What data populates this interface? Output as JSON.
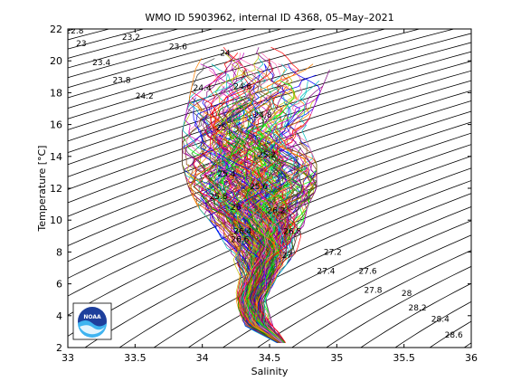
{
  "chart_data": {
    "type": "line",
    "title": "WMO ID 5903962, internal ID 4368, 05–May–2021",
    "xlabel": "Salinity",
    "ylabel": "Temperature [°C]",
    "xlim": [
      33,
      36
    ],
    "ylim": [
      2,
      22
    ],
    "xticks": [
      "33",
      "33.5",
      "34",
      "34.5",
      "35",
      "35.5",
      "36"
    ],
    "yticks": [
      "2",
      "4",
      "6",
      "8",
      "10",
      "12",
      "14",
      "16",
      "18",
      "20",
      "22"
    ],
    "grid": false,
    "isopycnals": {
      "values": [
        22.8,
        23,
        23.2,
        23.4,
        23.6,
        23.8,
        24,
        24.2,
        24.4,
        24.6,
        24.8,
        25,
        25.2,
        25.4,
        25.6,
        25.8,
        26,
        26.2,
        26.4,
        26.6,
        26.8,
        27,
        27.2,
        27.4,
        27.6,
        27.8,
        28,
        28.2,
        28.4,
        28.6
      ],
      "labels": [
        {
          "text": "22.8",
          "s": 33.05,
          "t": 21.9
        },
        {
          "text": "23",
          "s": 33.1,
          "t": 21.1
        },
        {
          "text": "23.2",
          "s": 33.47,
          "t": 21.5
        },
        {
          "text": "23.4",
          "s": 33.25,
          "t": 19.9
        },
        {
          "text": "23.6",
          "s": 33.82,
          "t": 20.9
        },
        {
          "text": "23.8",
          "s": 33.4,
          "t": 18.8
        },
        {
          "text": "24",
          "s": 34.17,
          "t": 20.5
        },
        {
          "text": "24.2",
          "s": 33.57,
          "t": 17.8
        },
        {
          "text": "24.4",
          "s": 34.0,
          "t": 18.3
        },
        {
          "text": "24.6",
          "s": 34.3,
          "t": 18.4
        },
        {
          "text": "24.8",
          "s": 34.45,
          "t": 16.6
        },
        {
          "text": "25",
          "s": 34.14,
          "t": 15.8
        },
        {
          "text": "25.2",
          "s": 34.48,
          "t": 14.1
        },
        {
          "text": "25.4",
          "s": 34.18,
          "t": 12.9
        },
        {
          "text": "25.6",
          "s": 34.42,
          "t": 12.1
        },
        {
          "text": "25.8",
          "s": 34.12,
          "t": 11.5
        },
        {
          "text": "26",
          "s": 34.25,
          "t": 10.8
        },
        {
          "text": "26.2",
          "s": 34.55,
          "t": 10.6
        },
        {
          "text": "26.4",
          "s": 34.3,
          "t": 9.3
        },
        {
          "text": "26.6",
          "s": 34.28,
          "t": 8.8
        },
        {
          "text": "26.8",
          "s": 34.67,
          "t": 9.3
        },
        {
          "text": "27",
          "s": 34.63,
          "t": 7.8
        },
        {
          "text": "27.2",
          "s": 34.97,
          "t": 8.0
        },
        {
          "text": "27.4",
          "s": 34.92,
          "t": 6.8
        },
        {
          "text": "27.6",
          "s": 35.23,
          "t": 6.8
        },
        {
          "text": "27.8",
          "s": 35.27,
          "t": 5.6
        },
        {
          "text": "28",
          "s": 35.52,
          "t": 5.4
        },
        {
          "text": "28.2",
          "s": 35.6,
          "t": 4.5
        },
        {
          "text": "28.4",
          "s": 35.77,
          "t": 3.8
        },
        {
          "text": "28.6",
          "s": 35.87,
          "t": 2.8
        }
      ]
    },
    "profile_bundle": {
      "count": 240,
      "envelope": [
        {
          "t": 2.3,
          "smin": 34.55,
          "smax": 34.62
        },
        {
          "t": 3.5,
          "smin": 34.27,
          "smax": 34.52
        },
        {
          "t": 5,
          "smin": 34.24,
          "smax": 34.47
        },
        {
          "t": 6.5,
          "smin": 34.28,
          "smax": 34.56
        },
        {
          "t": 8,
          "smin": 34.2,
          "smax": 34.7
        },
        {
          "t": 9.5,
          "smin": 34.1,
          "smax": 34.75
        },
        {
          "t": 10.8,
          "smin": 33.97,
          "smax": 34.78
        },
        {
          "t": 12,
          "smin": 33.9,
          "smax": 34.85
        },
        {
          "t": 13.5,
          "smin": 33.85,
          "smax": 34.85
        },
        {
          "t": 15.5,
          "smin": 33.85,
          "smax": 34.75
        },
        {
          "t": 17.5,
          "smin": 33.9,
          "smax": 34.85
        },
        {
          "t": 19.5,
          "smin": 33.95,
          "smax": 34.95
        },
        {
          "t": 21,
          "smin": 34.05,
          "smax": 34.65
        }
      ],
      "colors": [
        "#0000ff",
        "#008000",
        "#ff0000",
        "#00bfbf",
        "#bf00bf",
        "#bfbf00",
        "#404040",
        "#ff8000",
        "#800080",
        "#00ff00",
        "#8b4513",
        "#ff69b4"
      ]
    },
    "logo": {
      "icon": "noaa-logo",
      "text": "NOAA"
    }
  }
}
